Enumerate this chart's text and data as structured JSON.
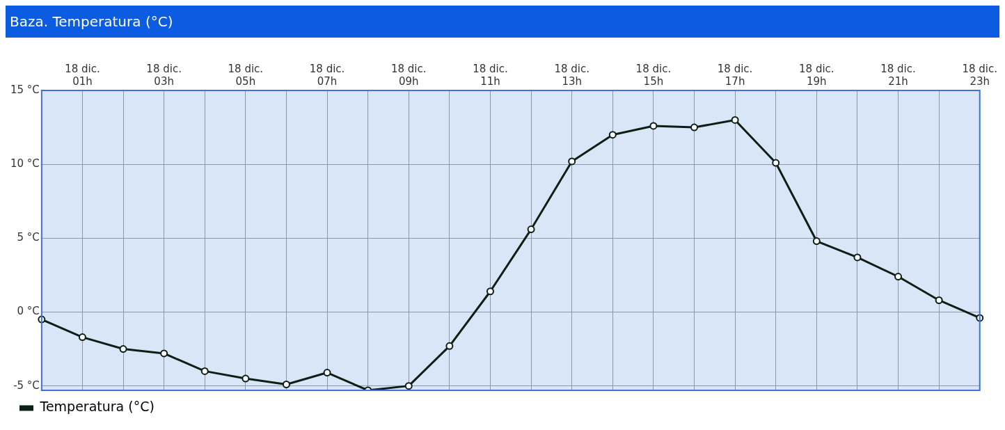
{
  "chart_data": {
    "type": "line",
    "title": "Baza. Temperatura (°C)",
    "categories": [
      null,
      "18 dic.\n01h",
      null,
      "18 dic.\n03h",
      null,
      "18 dic.\n05h",
      null,
      "18 dic.\n07h",
      null,
      "18 dic.\n09h",
      null,
      "18 dic.\n11h",
      null,
      "18 dic.\n13h",
      null,
      "18 dic.\n15h",
      null,
      "18 dic.\n17h",
      null,
      "18 dic.\n19h",
      null,
      "18 dic.\n21h",
      null,
      "18 dic.\n23h"
    ],
    "series": [
      {
        "name": "Temperatura (°C)",
        "color": "#0b1f14",
        "values": [
          -0.5,
          -1.7,
          -2.5,
          -2.8,
          -4.0,
          -4.5,
          -4.9,
          -4.1,
          -5.3,
          -5.0,
          -2.3,
          1.4,
          5.6,
          10.2,
          12.0,
          12.6,
          12.5,
          13.0,
          10.1,
          4.8,
          3.7,
          2.4,
          0.8,
          -0.4
        ]
      }
    ],
    "ylim": [
      -5.3,
      15
    ],
    "yticks": [
      {
        "value": -5,
        "label": "-5 °C"
      },
      {
        "value": 0,
        "label": "0 °C"
      },
      {
        "value": 5,
        "label": "5 °C"
      },
      {
        "value": 10,
        "label": "10 °C"
      },
      {
        "value": 15,
        "label": "15 °C"
      }
    ],
    "grid": true,
    "legend": "bottom left",
    "marker": "circle",
    "line_style": "solid"
  }
}
